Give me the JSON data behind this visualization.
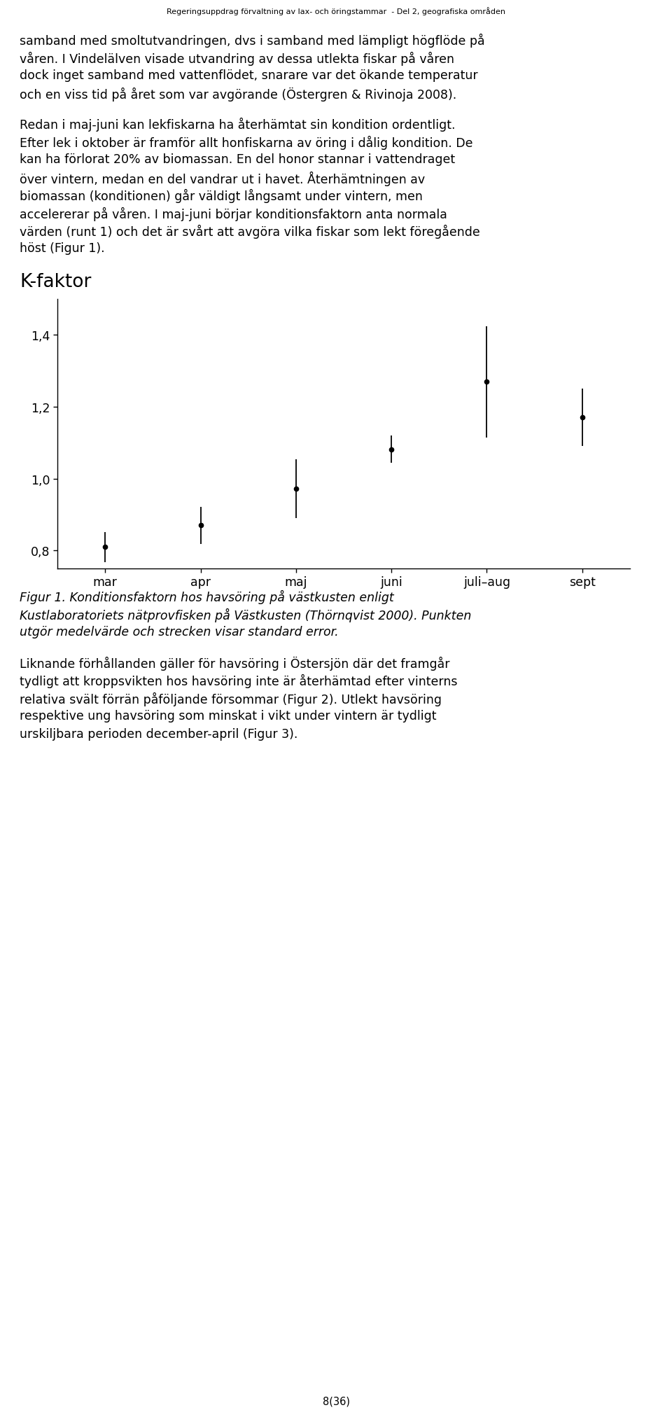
{
  "header": "Regeringsuppdrag förvaltning av lax- och öringstammar  - Del 2, geografiska områden",
  "para1_lines": [
    "samband med smoltutvandringen, dvs i samband med lämpligt högflöde på",
    "våren. I Vindelälven visade utvandring av dessa utlekta fiskar på våren",
    "dock inget samband med vattenflödet, snarare var det ökande temperatur",
    "och en viss tid på året som var avgörande (Östergren & Rivinoja 2008)."
  ],
  "para2_lines": [
    "Redan i maj-juni kan lekfiskarna ha återhämtat sin kondition ordentligt.",
    "Efter lek i oktober är framför allt honfiskarna av öring i dålig kondition. De",
    "kan ha förlorat 20% av biomassan. En del honor stannar i vattendraget",
    "över vintern, medan en del vandrar ut i havet. Återhämtningen av",
    "biomassan (konditionen) går väldigt långsamt under vintern, men",
    "accelererar på våren. I maj-juni börjar konditionsfaktorn anta normala",
    "värden (runt 1) och det är svårt att avgöra vilka fiskar som lekt föregående",
    "höst (Figur 1)."
  ],
  "chart_title": "K-faktor",
  "x_labels": [
    "mar",
    "apr",
    "maj",
    "juni",
    "juli–aug",
    "sept"
  ],
  "means": [
    0.81,
    0.87,
    0.972,
    1.082,
    1.27,
    1.17
  ],
  "errors": [
    0.042,
    0.052,
    0.082,
    0.038,
    0.155,
    0.08
  ],
  "ylim": [
    0.75,
    1.5
  ],
  "yticks": [
    0.8,
    1.0,
    1.2,
    1.4
  ],
  "ytick_labels": [
    "0,8",
    "1,0",
    "1,2",
    "1,4"
  ],
  "fig_caption_lines": [
    "Figur 1. Konditionsfaktorn hos havsöring på västkusten enligt",
    "Kustlaboratoriets nätprovfisken på Västkusten (Thörnqvist 2000). Punkten",
    "utgör medelvärde och strecken visar standard error."
  ],
  "para3_lines": [
    "Liknande förhållanden gäller för havsöring i Östersjön där det framgår",
    "tydligt att kroppsvikten hos havsöring inte är återhämtad efter vinterns",
    "relativa svält förrän påföljande försommar (Figur 2). Utlekt havsöring",
    "respektive ung havsöring som minskat i vikt under vintern är tydligt",
    "urskiljbara perioden december-april (Figur 3)."
  ],
  "footer": "8(36)",
  "bg_color": "#ffffff",
  "text_color": "#000000"
}
